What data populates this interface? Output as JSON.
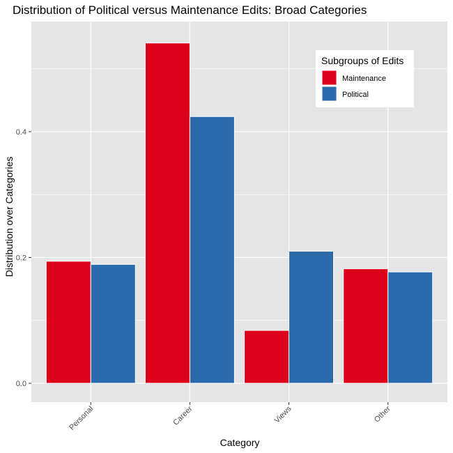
{
  "chart_data": {
    "type": "bar",
    "title": "Distribution of Political versus Maintenance Edits: Broad Categories",
    "xlabel": "Category",
    "ylabel": "Distribution over Categories",
    "categories": [
      "Personal",
      "Career",
      "Views",
      "Other"
    ],
    "series": [
      {
        "name": "Maintenance",
        "color": "#dc001a",
        "values": [
          0.194,
          0.541,
          0.084,
          0.182
        ]
      },
      {
        "name": "Political",
        "color": "#2b6aab",
        "values": [
          0.189,
          0.424,
          0.21,
          0.177
        ]
      }
    ],
    "ylim": [
      -0.03,
      0.575
    ],
    "yticks": [
      0.0,
      0.2,
      0.4
    ],
    "ytick_labels": [
      "0.0",
      "0.2",
      "0.4"
    ],
    "legend_title": "Subgroups of Edits",
    "legend_position": "top-right",
    "grid": true,
    "colors": {
      "panel": "#e5e5e5",
      "grid": "#ffffff"
    }
  }
}
